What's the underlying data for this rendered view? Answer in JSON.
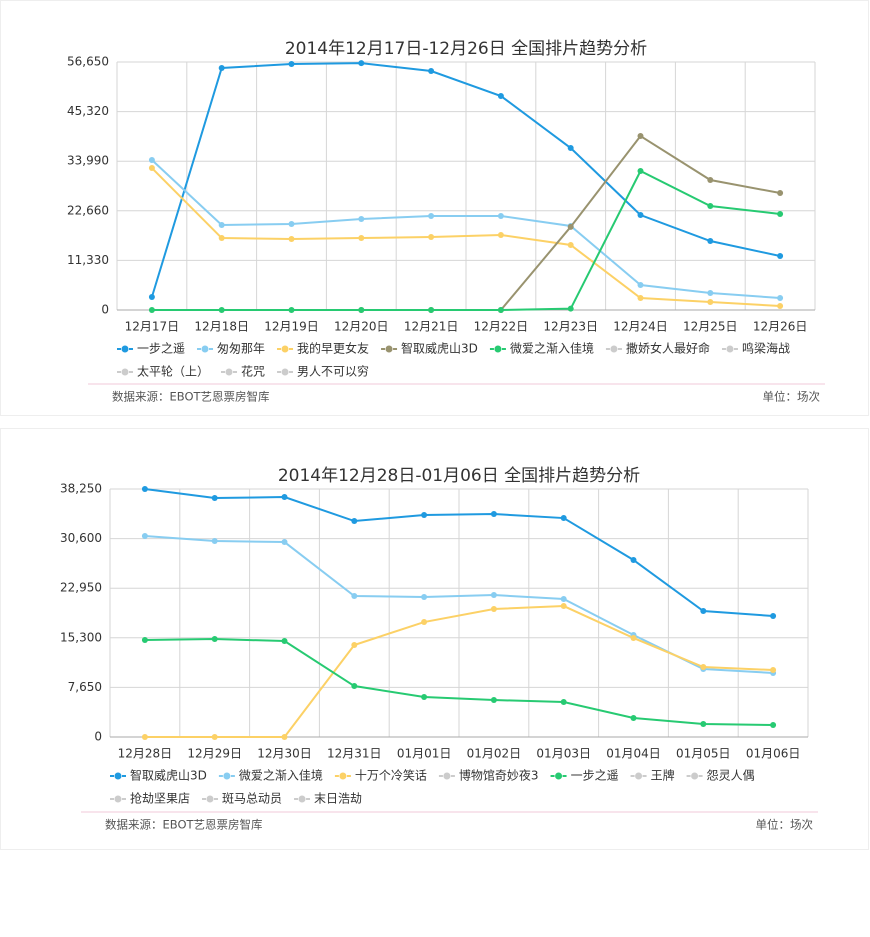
{
  "chart_data": [
    {
      "type": "line",
      "title": "2014年12月17日-12月26日 全国排片趋势分析",
      "categories": [
        "12月17日",
        "12月18日",
        "12月19日",
        "12月20日",
        "12月21日",
        "12月22日",
        "12月23日",
        "12月24日",
        "12月25日",
        "12月26日"
      ],
      "ylim": [
        0,
        56650
      ],
      "yticks": [
        0,
        {
          "value": 11330,
          "label": "11,330"
        },
        {
          "value": 22660,
          "label": "22,660"
        },
        {
          "value": 33990,
          "label": "33,990"
        },
        {
          "value": 45320,
          "label": "45,320"
        },
        {
          "value": 56650,
          "label": "56,650"
        }
      ],
      "grid": true,
      "series": [
        {
          "name": "一步之遥",
          "color": "#1f9ae0",
          "values": [
            2970,
            55280,
            56190,
            56400,
            54590,
            48880,
            37000,
            21700,
            15760,
            12330
          ]
        },
        {
          "name": "匆匆那年",
          "color": "#88cdf1",
          "values": [
            34260,
            19410,
            19640,
            20790,
            21470,
            21470,
            19190,
            5710,
            3880,
            2740
          ]
        },
        {
          "name": "我的早更女友",
          "color": "#fcd166",
          "values": [
            32430,
            16440,
            16220,
            16440,
            16670,
            17130,
            14850,
            2740,
            1830,
            910
          ]
        },
        {
          "name": "智取威虎山3D",
          "color": "#99936f",
          "values": [
            null,
            null,
            null,
            0,
            0,
            0,
            19000,
            39740,
            29690,
            26720
          ]
        },
        {
          "name": "微爱之渐入佳境",
          "color": "#27ca72",
          "values": [
            0,
            0,
            0,
            0,
            0,
            0,
            300,
            31750,
            23750,
            21930
          ]
        },
        {
          "name": "撒娇女人最好命",
          "color": "#cccccc",
          "hidden": true
        },
        {
          "name": "鸣梁海战",
          "color": "#cccccc",
          "hidden": true
        },
        {
          "name": "太平轮（上）",
          "color": "#cccccc",
          "hidden": true
        },
        {
          "name": "花咒",
          "color": "#cccccc",
          "hidden": true
        },
        {
          "name": "男人不可以穷",
          "color": "#cccccc",
          "hidden": true
        }
      ],
      "source": "数据来源：EBOT艺恩票房智库",
      "unit": "单位：场次"
    },
    {
      "type": "line",
      "title": "2014年12月28日-01月06日 全国排片趋势分析",
      "categories": [
        "12月28日",
        "12月29日",
        "12月30日",
        "12月31日",
        "01月01日",
        "01月02日",
        "01月03日",
        "01月04日",
        "01月05日",
        "01月06日"
      ],
      "ylim": [
        0,
        38250
      ],
      "yticks": [
        0,
        {
          "value": 7650,
          "label": "7,650"
        },
        {
          "value": 15300,
          "label": "15,300"
        },
        {
          "value": 22950,
          "label": "22,950"
        },
        {
          "value": 30600,
          "label": "30,600"
        },
        {
          "value": 38250,
          "label": "38,250"
        }
      ],
      "grid": true,
      "series": [
        {
          "name": "智取威虎山3D",
          "color": "#1f9ae0",
          "values": [
            38250,
            36860,
            37010,
            33310,
            34240,
            34390,
            33770,
            27300,
            19430,
            18660
          ]
        },
        {
          "name": "微爱之渐入佳境",
          "color": "#88cdf1",
          "values": [
            31000,
            30230,
            30070,
            21740,
            21590,
            21900,
            21280,
            15730,
            10490,
            9870
          ]
        },
        {
          "name": "十万个冷笑话",
          "color": "#fcd166",
          "values": [
            0,
            0,
            0,
            14190,
            17730,
            19740,
            20200,
            15270,
            10790,
            10330
          ]
        },
        {
          "name": "博物馆奇妙夜3",
          "color": "#cccccc",
          "hidden": true
        },
        {
          "name": "一步之遥",
          "color": "#27ca72",
          "values": [
            14960,
            15110,
            14800,
            7860,
            6170,
            5700,
            5400,
            2930,
            2000,
            1850
          ]
        },
        {
          "name": "王牌",
          "color": "#cccccc",
          "hidden": true
        },
        {
          "name": "怨灵人偶",
          "color": "#cccccc",
          "hidden": true
        },
        {
          "name": "抢劫坚果店",
          "color": "#cccccc",
          "hidden": true
        },
        {
          "name": "斑马总动员",
          "color": "#cccccc",
          "hidden": true
        },
        {
          "name": "末日浩劫",
          "color": "#cccccc",
          "hidden": true
        }
      ],
      "source": "数据来源：EBOT艺恩票房智库",
      "unit": "单位：场次"
    }
  ]
}
